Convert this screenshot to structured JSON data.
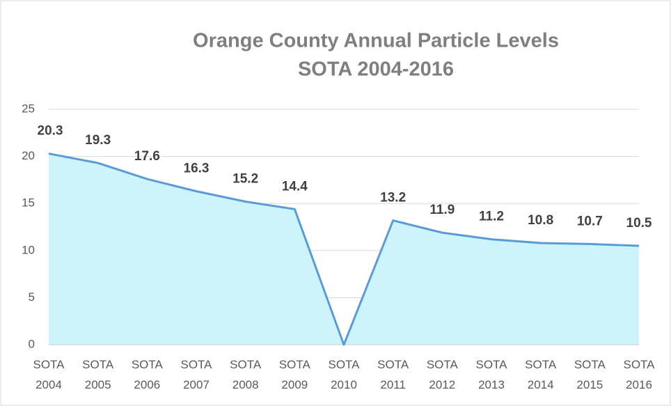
{
  "chart_data": {
    "type": "area",
    "title": "Orange County Annual Particle Levels",
    "subtitle": "SOTA 2004-2016",
    "categories": [
      "SOTA 2004",
      "SOTA 2005",
      "SOTA 2006",
      "SOTA 2007",
      "SOTA 2008",
      "SOTA 2009",
      "SOTA 2010",
      "SOTA 2011",
      "SOTA 2012",
      "SOTA 2013",
      "SOTA 2014",
      "SOTA 2015",
      "SOTA 2016"
    ],
    "values": [
      20.3,
      19.3,
      17.6,
      16.3,
      15.2,
      14.4,
      0,
      13.2,
      11.9,
      11.2,
      10.8,
      10.7,
      10.5
    ],
    "value_labels": [
      "20.3",
      "19.3",
      "17.6",
      "16.3",
      "15.2",
      "14.4",
      null,
      "13.2",
      "11.9",
      "11.2",
      "10.8",
      "10.7",
      "10.5"
    ],
    "color": "#5b9bd5",
    "fill": "#cdf3fb",
    "ylim": [
      0,
      25
    ],
    "yticks": [
      0,
      5,
      10,
      15,
      20,
      25
    ],
    "grid": true
  }
}
